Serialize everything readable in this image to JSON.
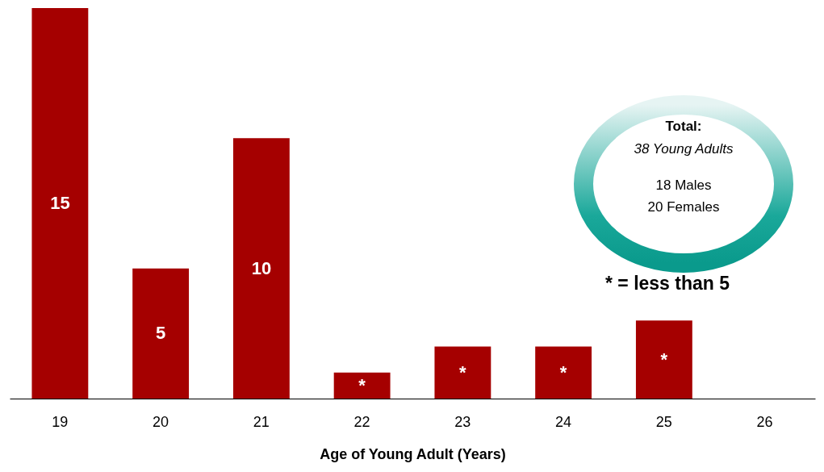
{
  "chart_data": {
    "type": "bar",
    "xlabel": "Age of Young Adult (Years)",
    "categories": [
      "19",
      "20",
      "21",
      "22",
      "23",
      "24",
      "25",
      "26"
    ],
    "values": [
      15,
      5,
      10,
      1,
      2,
      2,
      3,
      null
    ],
    "value_labels": [
      "15",
      "5",
      "10",
      "*",
      "*",
      "*",
      "*",
      null
    ],
    "color": "#a50000",
    "ylim": [
      0,
      15
    ],
    "tick_labels": "x",
    "grid": false,
    "annotations": [
      "Total:",
      "38 Young Adults",
      "18 Males",
      "20 Females",
      "* = less than 5"
    ]
  }
}
